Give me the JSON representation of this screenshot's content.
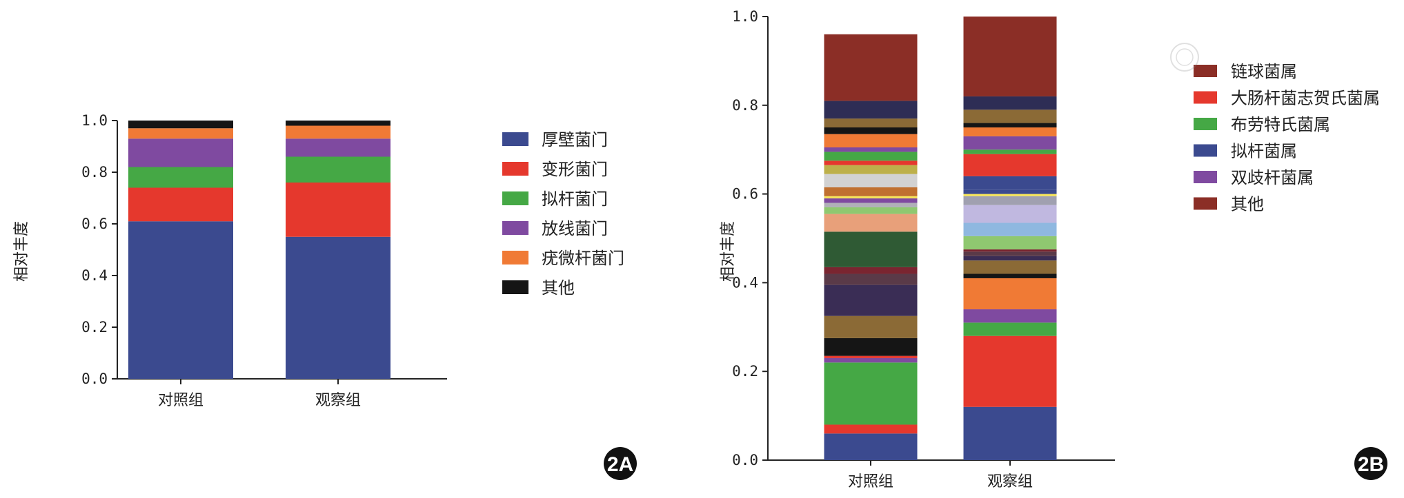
{
  "chart_data": [
    {
      "type": "bar",
      "stacked": true,
      "panel": "2A",
      "ylabel": "相对丰度",
      "ylim": [
        0,
        1
      ],
      "yticks": [
        "0.0",
        "0.2",
        "0.4",
        "0.6",
        "0.8",
        "1.0"
      ],
      "categories": [
        "对照组",
        "观察组"
      ],
      "series": [
        {
          "name": "厚壁菌门",
          "color": "#3b4a8f",
          "values": [
            0.61,
            0.55
          ]
        },
        {
          "name": "变形菌门",
          "color": "#e5382d",
          "values": [
            0.13,
            0.21
          ]
        },
        {
          "name": "拟杆菌门",
          "color": "#45a845",
          "values": [
            0.08,
            0.1
          ]
        },
        {
          "name": "放线菌门",
          "color": "#7f4aa0",
          "values": [
            0.11,
            0.07
          ]
        },
        {
          "name": "疣微杆菌门",
          "color": "#f07a35",
          "values": [
            0.04,
            0.05
          ]
        },
        {
          "name": "其他",
          "color": "#151515",
          "values": [
            0.03,
            0.02
          ]
        }
      ]
    },
    {
      "type": "bar",
      "stacked": true,
      "panel": "2B",
      "ylabel": "相对丰度",
      "ylim": [
        0,
        1
      ],
      "yticks": [
        "0.0",
        "0.2",
        "0.4",
        "0.6",
        "0.8",
        "1.0"
      ],
      "categories": [
        "对照组",
        "观察组"
      ],
      "segments": [
        [
          {
            "value": 0.06,
            "color": "#3b4a8f"
          },
          {
            "value": 0.02,
            "color": "#e5382d"
          },
          {
            "value": 0.14,
            "color": "#45a845"
          },
          {
            "value": 0.01,
            "color": "#7f4aa0"
          },
          {
            "value": 0.005,
            "color": "#e5382d"
          },
          {
            "value": 0.04,
            "color": "#151515"
          },
          {
            "value": 0.05,
            "color": "#8b6a36"
          },
          {
            "value": 0.07,
            "color": "#3a2d55"
          },
          {
            "value": 0.025,
            "color": "#5a3a48"
          },
          {
            "value": 0.015,
            "color": "#7a2530"
          },
          {
            "value": 0.08,
            "color": "#2f5a34"
          },
          {
            "value": 0.04,
            "color": "#e8a07a"
          },
          {
            "value": 0.015,
            "color": "#8fc870"
          },
          {
            "value": 0.01,
            "color": "#b0b0b8"
          },
          {
            "value": 0.01,
            "color": "#7f4aa0"
          },
          {
            "value": 0.005,
            "color": "#f5e35a"
          },
          {
            "value": 0.02,
            "color": "#c07030"
          },
          {
            "value": 0.03,
            "color": "#d2d2d2"
          },
          {
            "value": 0.02,
            "color": "#bdb04a"
          },
          {
            "value": 0.01,
            "color": "#e5382d"
          },
          {
            "value": 0.02,
            "color": "#45a845"
          },
          {
            "value": 0.01,
            "color": "#7f4aa0"
          },
          {
            "value": 0.03,
            "color": "#f07a35"
          },
          {
            "value": 0.015,
            "color": "#151515"
          },
          {
            "value": 0.02,
            "color": "#8b6a36"
          },
          {
            "value": 0.04,
            "color": "#2e2d55"
          },
          {
            "value": 0.15,
            "color": "#8b2e26"
          }
        ],
        [
          {
            "value": 0.12,
            "color": "#3b4a8f"
          },
          {
            "value": 0.16,
            "color": "#e5382d"
          },
          {
            "value": 0.03,
            "color": "#45a845"
          },
          {
            "value": 0.03,
            "color": "#7f4aa0"
          },
          {
            "value": 0.07,
            "color": "#f07a35"
          },
          {
            "value": 0.01,
            "color": "#151515"
          },
          {
            "value": 0.03,
            "color": "#8b6a36"
          },
          {
            "value": 0.01,
            "color": "#3a2d55"
          },
          {
            "value": 0.01,
            "color": "#5a3a48"
          },
          {
            "value": 0.005,
            "color": "#7a2530"
          },
          {
            "value": 0.03,
            "color": "#8fc870"
          },
          {
            "value": 0.03,
            "color": "#8fb8e0"
          },
          {
            "value": 0.04,
            "color": "#c0b8e0"
          },
          {
            "value": 0.02,
            "color": "#a0a0b0"
          },
          {
            "value": 0.005,
            "color": "#f5e35a"
          },
          {
            "value": 0.01,
            "color": "#3b4a8f"
          },
          {
            "value": 0.03,
            "color": "#3b4a8f"
          },
          {
            "value": 0.05,
            "color": "#e5382d"
          },
          {
            "value": 0.01,
            "color": "#45a845"
          },
          {
            "value": 0.03,
            "color": "#7f4aa0"
          },
          {
            "value": 0.02,
            "color": "#f07a35"
          },
          {
            "value": 0.01,
            "color": "#151515"
          },
          {
            "value": 0.03,
            "color": "#8b6a36"
          },
          {
            "value": 0.03,
            "color": "#2e2d55"
          },
          {
            "value": 0.18,
            "color": "#8b2e26"
          }
        ]
      ],
      "legend": [
        {
          "name": "链球菌属",
          "color": "#8b2e26"
        },
        {
          "name": "大肠杆菌志贺氏菌属",
          "color": "#e5382d"
        },
        {
          "name": "布劳特氏菌属",
          "color": "#45a845"
        },
        {
          "name": "拟杆菌属",
          "color": "#3b4a8f"
        },
        {
          "name": "双歧杆菌属",
          "color": "#7f4aa0"
        },
        {
          "name": "其他",
          "color": "#8b2e26"
        }
      ]
    }
  ]
}
